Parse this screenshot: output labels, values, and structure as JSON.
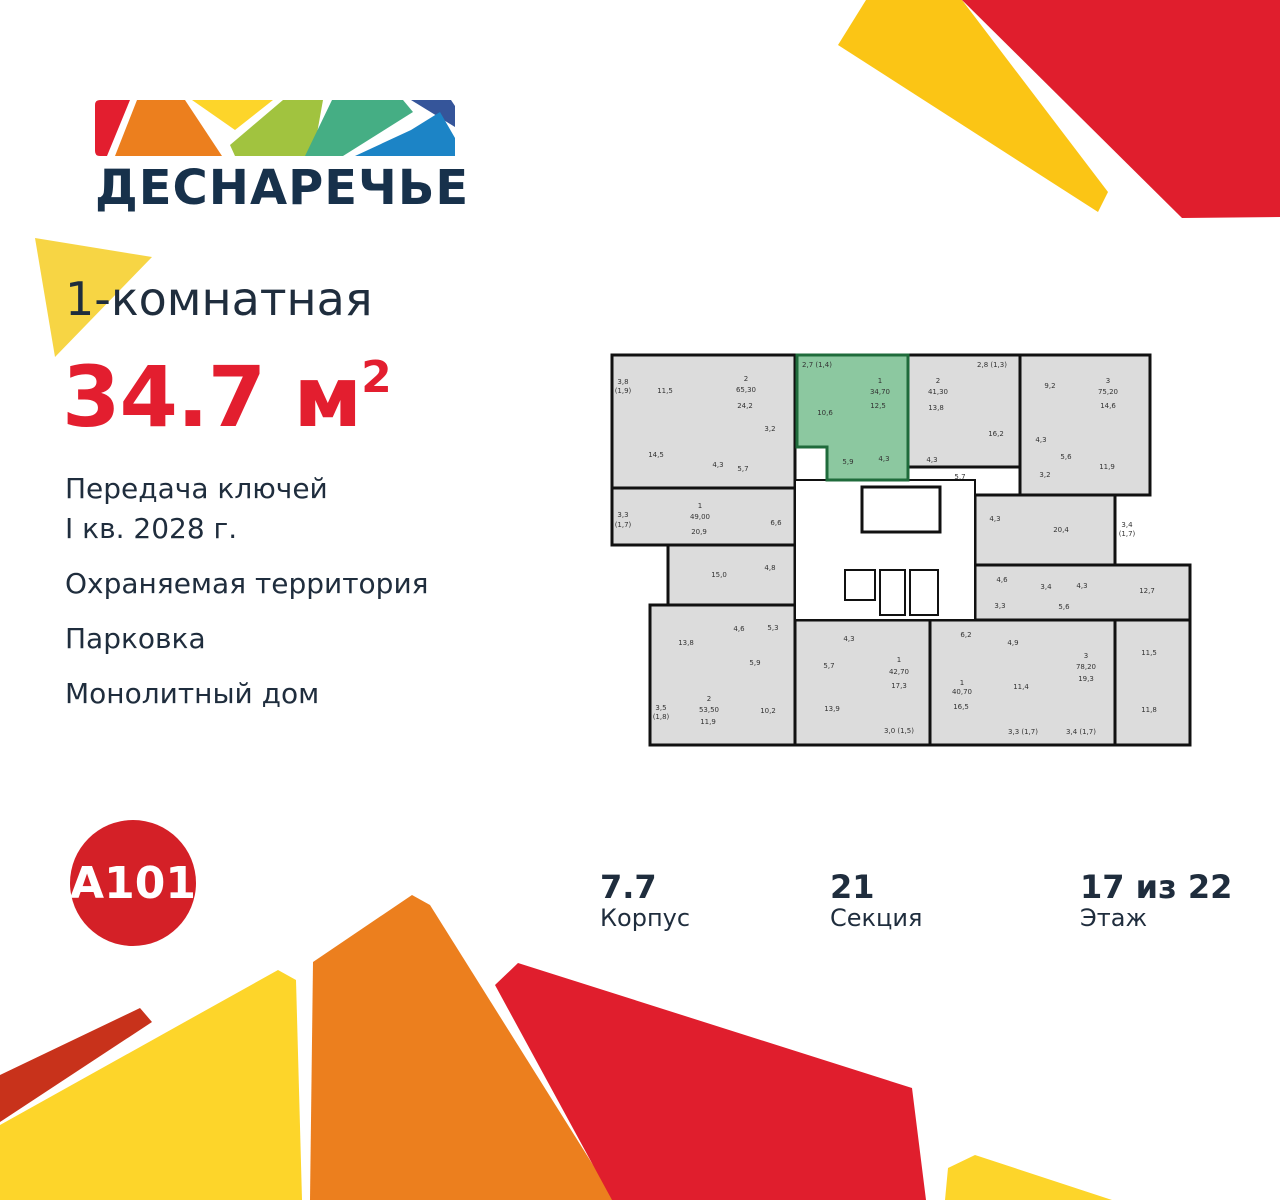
{
  "brand": {
    "logo_text": "ДЕСНАРЕЧЬЕ",
    "developer_logo": "A101",
    "colors": {
      "red": "#e31e2f",
      "orange": "#ec7f1e",
      "yellow": "#fdd52a",
      "green": "#a1c33f",
      "teal": "#45ae84",
      "blue": "#1c84c6",
      "navy": "#35559a",
      "dark": "#17314b"
    }
  },
  "apartment": {
    "type": "1-комнатная",
    "area_value": "34.7 м",
    "area_sup": "2",
    "features": [
      "Передача ключей",
      "I кв. 2028 г.",
      "Охраняемая территория",
      "Парковка",
      "Монолитный дом"
    ]
  },
  "stats": [
    {
      "value": "7.7",
      "label": "Корпус"
    },
    {
      "value": "21",
      "label": "Секция"
    },
    {
      "value": "17 из 22",
      "label": "Этаж"
    }
  ],
  "floor_plan": {
    "highlight_color": "#8cc8a0",
    "rooms": [
      "3,8",
      "(1,9)",
      "11,5",
      "2",
      "65,30",
      "24,2",
      "14,5",
      "3,2",
      "4,3",
      "5,7",
      "2,7 (1,4)",
      "1",
      "34,70",
      "10,6",
      "12,5",
      "5,9",
      "4,3",
      "2",
      "41,30",
      "13,8",
      "2,8 (1,3)",
      "16,2",
      "4,3",
      "5,7",
      "9,2",
      "3",
      "75,20",
      "14,6",
      "4,3",
      "3,2",
      "5,6",
      "11,9",
      "3,3",
      "(1,7)",
      "1",
      "49,00",
      "20,9",
      "6,6",
      "15,0",
      "4,8",
      "4,3",
      "20,4",
      "3,4",
      "(1,7)",
      "4,6",
      "3,4",
      "4,3",
      "12,7",
      "3,3",
      "5,6",
      "13,8",
      "4,6",
      "5,3",
      "5,9",
      "4,3",
      "5,7",
      "1",
      "42,70",
      "17,3",
      "6,2",
      "4,9",
      "1",
      "40,70",
      "16,5",
      "11,4",
      "3",
      "78,20",
      "19,3",
      "11,5",
      "11,8",
      "3,5",
      "(1,8)",
      "2",
      "53,50",
      "11,9",
      "10,2",
      "13,9",
      "3,0 (1,5)",
      "3,3 (1,7)",
      "3,4 (1,7)"
    ]
  }
}
